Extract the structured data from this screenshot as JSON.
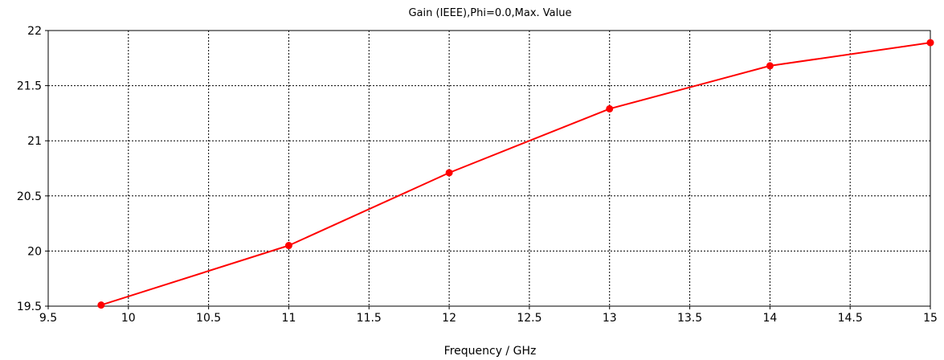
{
  "chart_data": {
    "type": "line",
    "title": "Gain (IEEE),Phi=0.0,Max. Value",
    "xlabel": "Frequency / GHz",
    "ylabel": "",
    "xlim": [
      9.5,
      15
    ],
    "ylim": [
      19.5,
      22
    ],
    "xticks": [
      "9.5",
      "10",
      "10.5",
      "11",
      "11.5",
      "12",
      "12.5",
      "13",
      "13.5",
      "14",
      "14.5",
      "15"
    ],
    "yticks": [
      "19.5",
      "20",
      "20.5",
      "21",
      "21.5",
      "22"
    ],
    "grid": true,
    "series": [
      {
        "color": "#ff0000",
        "x": [
          9.83,
          11,
          12,
          13,
          14,
          15
        ],
        "y": [
          19.51,
          20.05,
          20.71,
          21.29,
          21.68,
          21.89
        ]
      }
    ]
  }
}
